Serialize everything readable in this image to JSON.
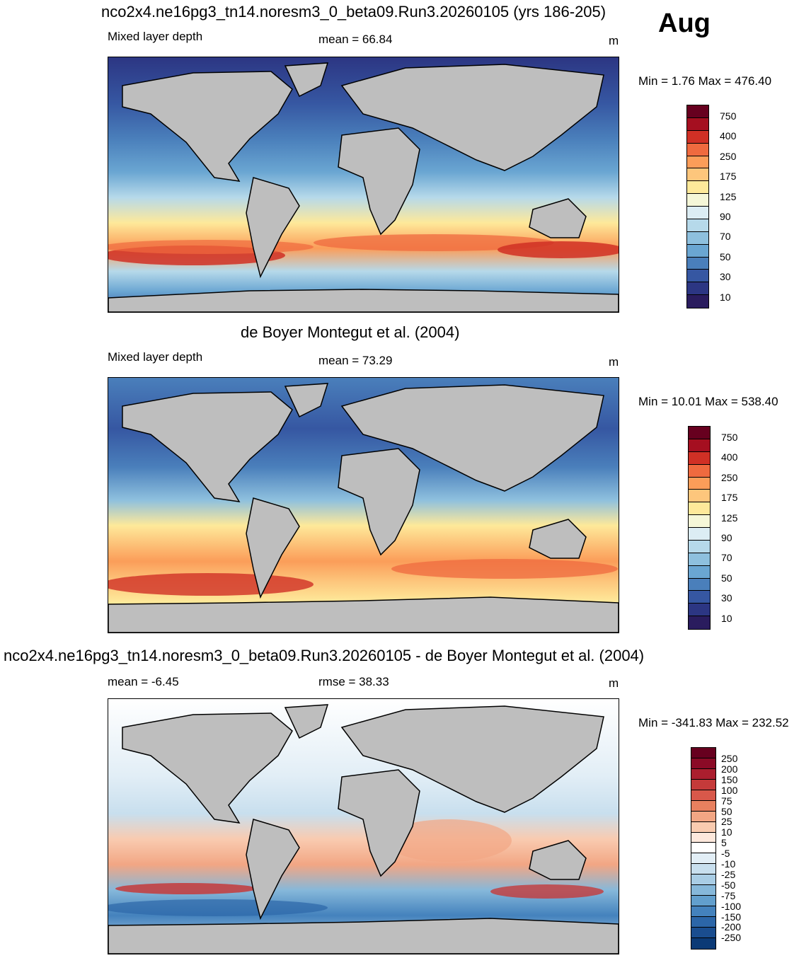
{
  "month": "Aug",
  "land_color": "#bebebe",
  "panels": [
    {
      "title": "nco2x4.ne16pg3_tn14.noresm3_0_beta09.Run3.20260105 (yrs 186-205)",
      "left_label": "Mixed layer depth",
      "center_label": "mean =  66.84",
      "units": "m",
      "minmax": "Min =   1.76 Max = 476.40"
    },
    {
      "title": "de Boyer Montegut et al. (2004)",
      "left_label": "Mixed layer depth",
      "center_label": "mean =  73.29",
      "units": "m",
      "minmax": "Min =  10.01 Max = 538.40"
    },
    {
      "title": "nco2x4.ne16pg3_tn14.noresm3_0_beta09.Run3.20260105 - de Boyer Montegut et al. (2004)",
      "left_label": "mean =  -6.45",
      "center_label": "rmse =  38.33",
      "units": "m",
      "minmax": "Min = -341.83 Max = 232.52"
    }
  ],
  "colorbar_abs": {
    "labels": [
      "750",
      "400",
      "250",
      "175",
      "125",
      "90",
      "70",
      "50",
      "30",
      "10"
    ],
    "colors": [
      "#67001f",
      "#a50f20",
      "#d03025",
      "#ef6a3f",
      "#fb9d59",
      "#fdc67c",
      "#fee99a",
      "#f5f7d8",
      "#dcedf4",
      "#b6d9ea",
      "#8ec0de",
      "#6aa6d2",
      "#4a7fbb",
      "#3657a2",
      "#2c3683",
      "#2a1c5e"
    ]
  },
  "colorbar_diff": {
    "labels": [
      "250",
      "200",
      "150",
      "100",
      "75",
      "50",
      "25",
      "10",
      "5",
      "-5",
      "-10",
      "-25",
      "-50",
      "-75",
      "-100",
      "-150",
      "-200",
      "-250"
    ],
    "colors": [
      "#67001f",
      "#8b0a26",
      "#ab1e2e",
      "#c53a3a",
      "#d8584a",
      "#e8805f",
      "#f2a684",
      "#f9cbb0",
      "#fde8dc",
      "#ffffff",
      "#e2eef6",
      "#c8dfee",
      "#a9cde5",
      "#86b8da",
      "#629fcd",
      "#4482bd",
      "#2c66a8",
      "#1a4d8f",
      "#0c3a76"
    ]
  }
}
